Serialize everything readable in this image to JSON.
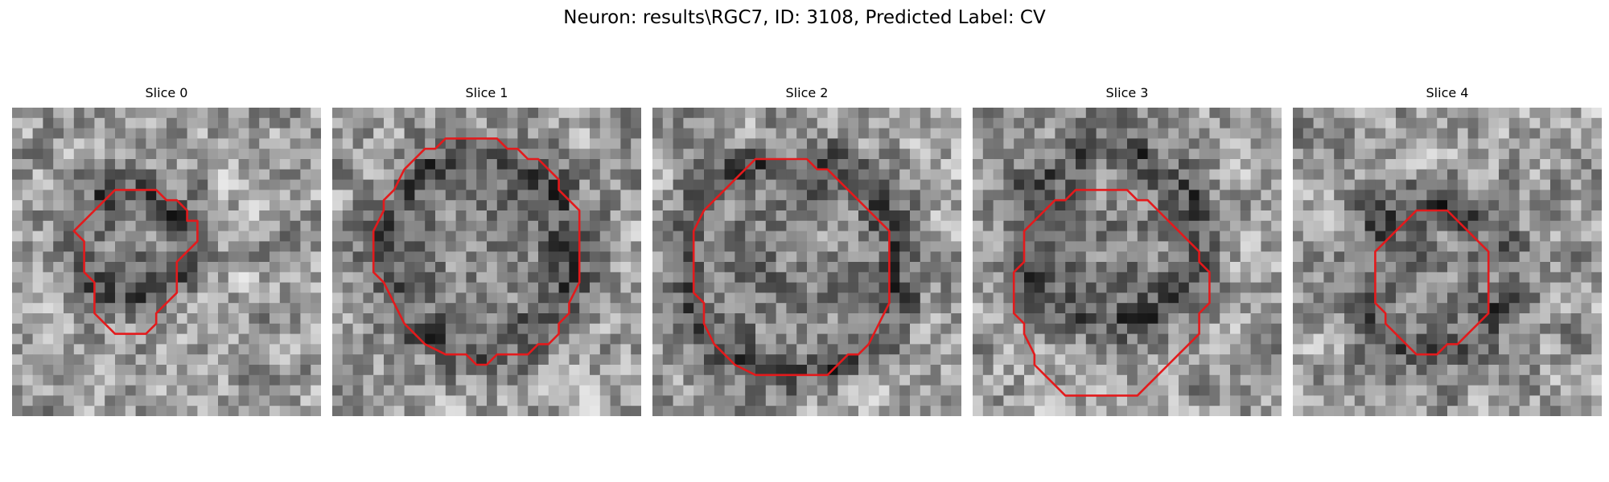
{
  "figure": {
    "suptitle": "Neuron: results\\RGC7, ID: 3108, Predicted Label: CV"
  },
  "panels": [
    {
      "title": "Slice 0",
      "seed": 11,
      "contour": [
        [
          12,
          8
        ],
        [
          14,
          8
        ],
        [
          15,
          9
        ],
        [
          16,
          9
        ],
        [
          17,
          10
        ],
        [
          17,
          11
        ],
        [
          18,
          11
        ],
        [
          18,
          13
        ],
        [
          17,
          14
        ],
        [
          16,
          15
        ],
        [
          16,
          18
        ],
        [
          15,
          19
        ],
        [
          14,
          20
        ],
        [
          14,
          21
        ],
        [
          13,
          22
        ],
        [
          10,
          22
        ],
        [
          9,
          21
        ],
        [
          8,
          20
        ],
        [
          8,
          17
        ],
        [
          7,
          16
        ],
        [
          7,
          13
        ],
        [
          6,
          12
        ],
        [
          7,
          11
        ],
        [
          8,
          10
        ],
        [
          9,
          9
        ],
        [
          10,
          8
        ]
      ],
      "dark_center": [
        11.5,
        13.5
      ],
      "dark_radius": 6
    },
    {
      "title": "Slice 1",
      "seed": 23,
      "contour": [
        [
          11,
          3
        ],
        [
          16,
          3
        ],
        [
          17,
          4
        ],
        [
          18,
          4
        ],
        [
          19,
          5
        ],
        [
          20,
          5
        ],
        [
          21,
          6
        ],
        [
          22,
          7
        ],
        [
          22,
          8
        ],
        [
          23,
          9
        ],
        [
          24,
          10
        ],
        [
          24,
          17
        ],
        [
          23,
          19
        ],
        [
          23,
          20
        ],
        [
          22,
          21
        ],
        [
          22,
          22
        ],
        [
          21,
          23
        ],
        [
          20,
          23
        ],
        [
          19,
          24
        ],
        [
          16,
          24
        ],
        [
          15,
          25
        ],
        [
          14,
          25
        ],
        [
          13,
          24
        ],
        [
          11,
          24
        ],
        [
          9,
          23
        ],
        [
          8,
          22
        ],
        [
          7,
          21
        ],
        [
          6,
          19
        ],
        [
          5,
          17
        ],
        [
          4,
          16
        ],
        [
          4,
          12
        ],
        [
          5,
          10
        ],
        [
          5,
          9
        ],
        [
          6,
          8
        ],
        [
          7,
          6
        ],
        [
          8,
          5
        ],
        [
          9,
          4
        ],
        [
          10,
          4
        ]
      ],
      "dark_center": [
        14,
        14
      ],
      "dark_radius": 10
    },
    {
      "title": "Slice 2",
      "seed": 37,
      "contour": [
        [
          10,
          5
        ],
        [
          15,
          5
        ],
        [
          16,
          6
        ],
        [
          17,
          6
        ],
        [
          19,
          8
        ],
        [
          20,
          9
        ],
        [
          21,
          10
        ],
        [
          22,
          11
        ],
        [
          23,
          12
        ],
        [
          23,
          19
        ],
        [
          22,
          21
        ],
        [
          21,
          23
        ],
        [
          20,
          24
        ],
        [
          19,
          24
        ],
        [
          17,
          26
        ],
        [
          10,
          26
        ],
        [
          8,
          25
        ],
        [
          7,
          24
        ],
        [
          6,
          23
        ],
        [
          5,
          21
        ],
        [
          5,
          19
        ],
        [
          4,
          18
        ],
        [
          4,
          12
        ],
        [
          5,
          10
        ],
        [
          6,
          9
        ],
        [
          7,
          8
        ],
        [
          8,
          7
        ],
        [
          9,
          6
        ]
      ],
      "dark_center": [
        13.5,
        15.5
      ],
      "dark_radius": 11
    },
    {
      "title": "Slice 3",
      "seed": 53,
      "contour": [
        [
          10,
          8
        ],
        [
          15,
          8
        ],
        [
          16,
          9
        ],
        [
          17,
          9
        ],
        [
          18,
          10
        ],
        [
          19,
          11
        ],
        [
          20,
          12
        ],
        [
          21,
          13
        ],
        [
          22,
          14
        ],
        [
          22,
          15
        ],
        [
          23,
          16
        ],
        [
          23,
          19
        ],
        [
          22,
          20
        ],
        [
          22,
          22
        ],
        [
          21,
          23
        ],
        [
          20,
          24
        ],
        [
          19,
          25
        ],
        [
          18,
          26
        ],
        [
          17,
          27
        ],
        [
          16,
          28
        ],
        [
          9,
          28
        ],
        [
          8,
          27
        ],
        [
          7,
          26
        ],
        [
          6,
          25
        ],
        [
          6,
          24
        ],
        [
          5,
          22
        ],
        [
          5,
          21
        ],
        [
          4,
          20
        ],
        [
          4,
          16
        ],
        [
          5,
          15
        ],
        [
          5,
          12
        ],
        [
          6,
          11
        ],
        [
          7,
          10
        ],
        [
          8,
          9
        ],
        [
          9,
          9
        ]
      ],
      "dark_center": [
        13.5,
        12.5
      ],
      "dark_radius": 9
    },
    {
      "title": "Slice 4",
      "seed": 71,
      "contour": [
        [
          12,
          10
        ],
        [
          15,
          10
        ],
        [
          16,
          11
        ],
        [
          17,
          12
        ],
        [
          18,
          13
        ],
        [
          19,
          14
        ],
        [
          19,
          20
        ],
        [
          18,
          21
        ],
        [
          17,
          22
        ],
        [
          16,
          23
        ],
        [
          15,
          23
        ],
        [
          14,
          24
        ],
        [
          12,
          24
        ],
        [
          11,
          23
        ],
        [
          10,
          22
        ],
        [
          9,
          21
        ],
        [
          9,
          20
        ],
        [
          8,
          19
        ],
        [
          8,
          14
        ],
        [
          9,
          13
        ],
        [
          10,
          12
        ],
        [
          11,
          11
        ]
      ],
      "dark_center": [
        13.5,
        16.5
      ],
      "dark_radius": 8
    }
  ],
  "colors": {
    "contour": "#e31a1c",
    "gray_min": "#141414",
    "gray_max": "#f0f0f0"
  },
  "grid_size": 30
}
